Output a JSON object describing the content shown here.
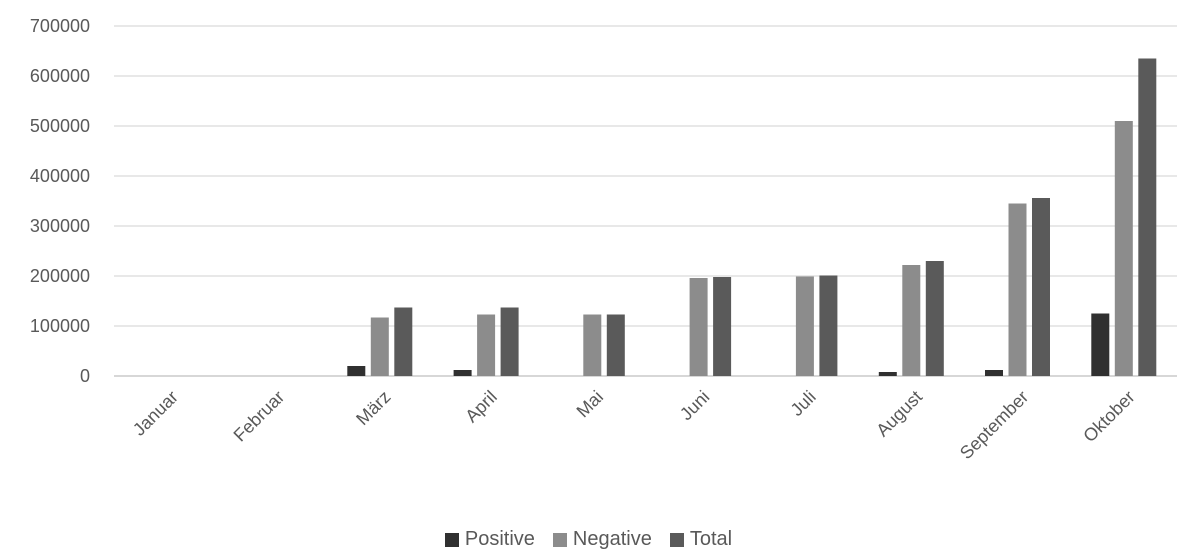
{
  "chart_data": {
    "type": "bar",
    "title": "",
    "xlabel": "",
    "ylabel": "",
    "ylim": [
      0,
      700000
    ],
    "yticks": [
      0,
      100000,
      200000,
      300000,
      400000,
      500000,
      600000,
      700000
    ],
    "ytick_labels": [
      "0",
      "100000",
      "200000",
      "300000",
      "400000",
      "500000",
      "600000",
      "700000"
    ],
    "grid": true,
    "legend_position": "bottom",
    "categories": [
      "Januar",
      "Februar",
      "März",
      "April",
      "Mai",
      "Juni",
      "Juli",
      "August",
      "September",
      "Oktober"
    ],
    "series": [
      {
        "name": "Positive",
        "color": "#303030",
        "values": [
          0,
          0,
          20000,
          12000,
          0,
          0,
          0,
          8000,
          12000,
          125000
        ]
      },
      {
        "name": "Negative",
        "color": "#8c8c8c",
        "values": [
          0,
          0,
          117000,
          123000,
          123000,
          196000,
          199000,
          222000,
          345000,
          510000
        ]
      },
      {
        "name": "Total",
        "color": "#5a5a5a",
        "values": [
          0,
          0,
          137000,
          137000,
          123000,
          198000,
          201000,
          230000,
          356000,
          635000
        ]
      }
    ]
  }
}
